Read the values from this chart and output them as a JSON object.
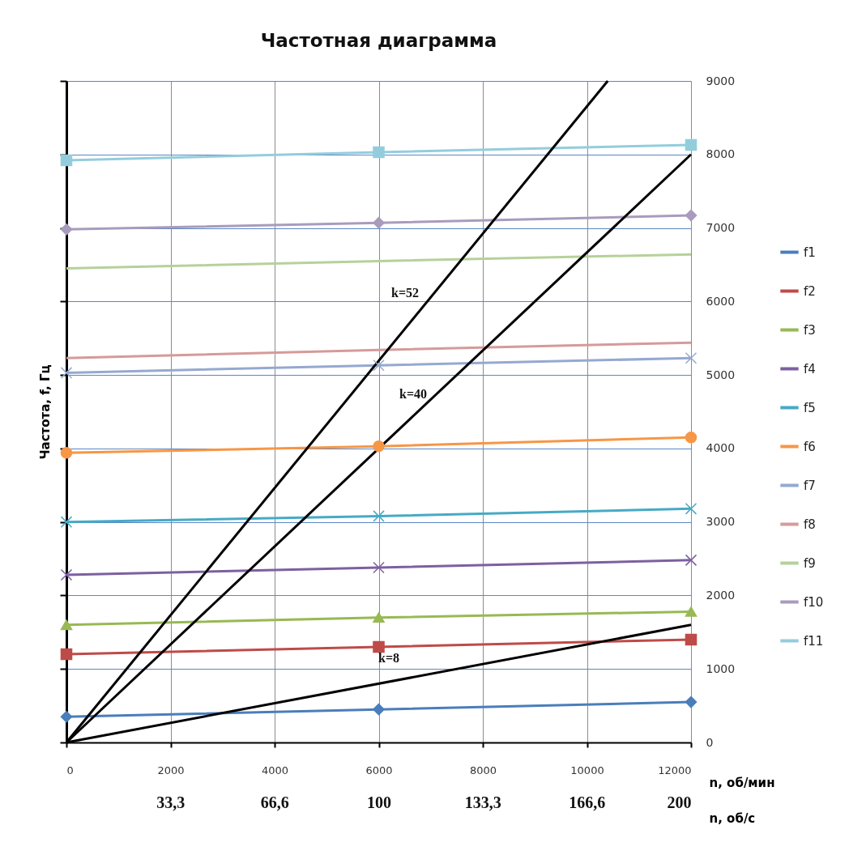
{
  "chart_data": {
    "type": "line",
    "title": "Частотная диаграмма",
    "xlabel": "n, об/мин",
    "ylabel": "Частота, f, Гц",
    "x2label": "n, об/с",
    "x": [
      0,
      6000,
      12000
    ],
    "xlim": [
      0,
      12000
    ],
    "xticks": [
      0,
      2000,
      4000,
      6000,
      8000,
      10000,
      12000
    ],
    "x2lim": [
      0,
      200
    ],
    "x2ticks": [
      {
        "value": 33.3,
        "label": "33,3"
      },
      {
        "value": 66.6,
        "label": "66,6"
      },
      100,
      {
        "value": 133.3,
        "label": "133,3"
      },
      {
        "value": 166.6,
        "label": "166,6"
      },
      200
    ],
    "ylim": [
      0,
      9000
    ],
    "yticks": [
      0,
      1000,
      2000,
      3000,
      4000,
      5000,
      6000,
      7000,
      8000,
      9000
    ],
    "grid": true,
    "legend": "right",
    "series": [
      {
        "name": "f1",
        "color": "#4a7ebb",
        "marker": "diamond",
        "values": [
          350,
          450,
          550
        ]
      },
      {
        "name": "f2",
        "color": "#be4b48",
        "marker": "square",
        "values": [
          1200,
          1300,
          1400
        ]
      },
      {
        "name": "f3",
        "color": "#98b954",
        "marker": "triangle",
        "values": [
          1600,
          1700,
          1780
        ]
      },
      {
        "name": "f4",
        "color": "#7d60a0",
        "marker": "cross",
        "values": [
          2280,
          2380,
          2480
        ]
      },
      {
        "name": "f5",
        "color": "#46aac5",
        "marker": "cross",
        "values": [
          3000,
          3080,
          3180
        ]
      },
      {
        "name": "f6",
        "color": "#f79646",
        "marker": "circle",
        "values": [
          3940,
          4030,
          4150
        ]
      },
      {
        "name": "f7",
        "color": "#95a9d0",
        "marker": "cross",
        "values": [
          5030,
          5130,
          5230
        ]
      },
      {
        "name": "f8",
        "color": "#d69a9a",
        "marker": "none",
        "values": [
          5230,
          5340,
          5440
        ]
      },
      {
        "name": "f9",
        "color": "#b6d19a",
        "marker": "none",
        "values": [
          6450,
          6550,
          6640
        ]
      },
      {
        "name": "f10",
        "color": "#a99bbd",
        "marker": "diamond",
        "values": [
          6980,
          7070,
          7170
        ]
      },
      {
        "name": "f11",
        "color": "#93cddd",
        "marker": "square",
        "values": [
          7920,
          8030,
          8130
        ]
      },
      {
        "color": "#000000",
        "marker": "none",
        "x": [
          0,
          12000
        ],
        "values": [
          0,
          1600
        ]
      },
      {
        "color": "#000000",
        "marker": "none",
        "x": [
          0,
          12000
        ],
        "values": [
          0,
          8000
        ]
      },
      {
        "color": "#000000",
        "marker": "none",
        "x": [
          0,
          10400
        ],
        "values": [
          0,
          9000
        ]
      }
    ],
    "annotations": [
      "k=52",
      "k=40",
      "k=8"
    ]
  }
}
